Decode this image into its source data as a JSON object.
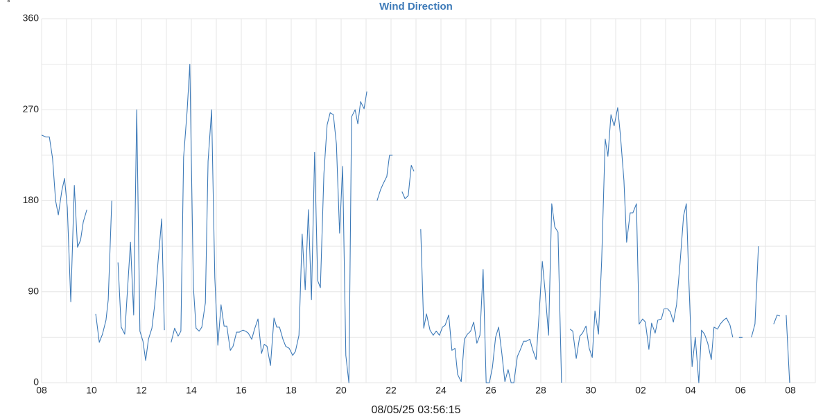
{
  "chart_data": {
    "type": "line",
    "title": "Wind Direction",
    "ylabel": "°",
    "footer": "08/05/25 03:56:15",
    "color": "#3d7ab8",
    "grid": true,
    "xlim": [
      0,
      31
    ],
    "ylim": [
      0,
      360
    ],
    "yticks": [
      0,
      90,
      180,
      270,
      360
    ],
    "y_minor_ticks": [
      45,
      135,
      225,
      315
    ],
    "xticks": [
      {
        "value": 0,
        "label": "08"
      },
      {
        "value": 2,
        "label": "10"
      },
      {
        "value": 4,
        "label": "12"
      },
      {
        "value": 6,
        "label": "14"
      },
      {
        "value": 8,
        "label": "16"
      },
      {
        "value": 10,
        "label": "18"
      },
      {
        "value": 12,
        "label": "20"
      },
      {
        "value": 14,
        "label": "22"
      },
      {
        "value": 16,
        "label": "24"
      },
      {
        "value": 18,
        "label": "26"
      },
      {
        "value": 20,
        "label": "28"
      },
      {
        "value": 22,
        "label": "30"
      },
      {
        "value": 24,
        "label": "02"
      },
      {
        "value": 26,
        "label": "04"
      },
      {
        "value": 28,
        "label": "06"
      },
      {
        "value": 30,
        "label": "08"
      }
    ],
    "x_minor_ticks": [
      1,
      3,
      5,
      7,
      9,
      11,
      13,
      15,
      17,
      19,
      21,
      23,
      25,
      27,
      29,
      31
    ],
    "x": [
      0,
      0.17,
      0.31,
      0.44,
      0.56,
      0.67,
      0.81,
      0.92,
      1.03,
      1.17,
      1.31,
      1.44,
      1.56,
      1.67,
      1.81,
      null,
      2.17,
      2.31,
      2.44,
      2.58,
      2.67,
      2.81,
      null,
      3.06,
      3.19,
      3.33,
      3.44,
      3.56,
      3.69,
      3.81,
      3.94,
      4.06,
      4.17,
      4.28,
      4.42,
      4.53,
      4.67,
      4.81,
      4.92,
      null,
      5.19,
      5.33,
      5.47,
      5.58,
      5.69,
      5.83,
      5.94,
      6.08,
      6.19,
      6.31,
      6.42,
      6.56,
      6.67,
      6.81,
      6.94,
      7.06,
      7.19,
      7.31,
      7.42,
      7.56,
      7.67,
      7.81,
      7.92,
      8.06,
      8.17,
      8.28,
      8.42,
      8.53,
      8.67,
      8.81,
      8.92,
      9.03,
      9.17,
      9.31,
      9.42,
      9.53,
      9.67,
      9.78,
      9.92,
      10.06,
      10.17,
      10.31,
      10.44,
      10.56,
      10.69,
      10.81,
      10.94,
      11.06,
      11.17,
      11.31,
      11.44,
      11.56,
      11.69,
      11.81,
      11.94,
      12.06,
      12.19,
      12.31,
      12.42,
      12.56,
      12.67,
      12.78,
      12.92,
      13.03,
      null,
      13.44,
      13.58,
      13.69,
      13.83,
      13.94,
      14.06,
      null,
      14.44,
      14.56,
      14.69,
      14.81,
      14.92,
      null,
      15.19,
      15.31,
      15.42,
      15.56,
      15.69,
      15.81,
      15.94,
      16.06,
      16.17,
      16.31,
      16.44,
      16.56,
      16.67,
      16.81,
      16.94,
      17.06,
      17.19,
      17.31,
      17.44,
      17.56,
      17.69,
      17.81,
      17.94,
      18.06,
      18.19,
      18.31,
      18.44,
      18.56,
      18.69,
      18.81,
      18.92,
      19.06,
      19.17,
      19.31,
      19.42,
      19.56,
      19.67,
      19.81,
      19.92,
      20.06,
      20.17,
      20.31,
      20.44,
      20.56,
      20.69,
      20.83,
      null,
      21.17,
      21.28,
      21.42,
      21.56,
      21.67,
      21.81,
      21.94,
      22.06,
      22.17,
      22.31,
      22.44,
      22.58,
      22.69,
      22.81,
      22.94,
      23.08,
      23.19,
      23.33,
      23.44,
      23.58,
      23.69,
      23.83,
      23.94,
      24.08,
      24.19,
      24.33,
      24.44,
      24.58,
      24.69,
      24.83,
      24.94,
      25.08,
      25.19,
      25.31,
      25.44,
      25.58,
      25.72,
      25.83,
      25.94,
      26.06,
      26.19,
      26.33,
      26.44,
      26.56,
      26.69,
      26.83,
      26.94,
      27.08,
      27.19,
      27.33,
      27.44,
      27.58,
      27.69,
      null,
      27.94,
      28.08,
      null,
      28.44,
      28.58,
      28.72,
      null,
      29.33,
      29.47,
      29.58,
      null,
      29.83,
      29.97
    ],
    "values": [
      245,
      243,
      243,
      222,
      180,
      166,
      190,
      202,
      173,
      80,
      195,
      134,
      141,
      159,
      171,
      null,
      68,
      40,
      48,
      62,
      82,
      180,
      null,
      119,
      55,
      48,
      91,
      139,
      67,
      270,
      51,
      41,
      22,
      43,
      54,
      77,
      121,
      162,
      52,
      null,
      40,
      54,
      46,
      51,
      223,
      269,
      315,
      95,
      54,
      51,
      55,
      79,
      219,
      270,
      104,
      37,
      77,
      56,
      56,
      32,
      36,
      50,
      50,
      52,
      51,
      49,
      43,
      53,
      63,
      29,
      38,
      36,
      17,
      64,
      55,
      55,
      43,
      36,
      34,
      27,
      31,
      47,
      147,
      92,
      171,
      82,
      228,
      101,
      94,
      207,
      255,
      267,
      265,
      236,
      148,
      214,
      27,
      0,
      263,
      270,
      256,
      278,
      271,
      288,
      null,
      180,
      191,
      197,
      204,
      225,
      225,
      null,
      189,
      182,
      185,
      215,
      209,
      null,
      152,
      54,
      68,
      52,
      47,
      51,
      47,
      55,
      57,
      67,
      32,
      34,
      8,
      1,
      43,
      48,
      51,
      60,
      39,
      47,
      112,
      0,
      0,
      15,
      45,
      55,
      29,
      1,
      13,
      0,
      0,
      26,
      32,
      41,
      41,
      43,
      33,
      23,
      63,
      120,
      91,
      47,
      177,
      154,
      149,
      0,
      null,
      53,
      51,
      24,
      46,
      49,
      56,
      34,
      25,
      71,
      48,
      121,
      241,
      224,
      265,
      254,
      272,
      245,
      200,
      139,
      168,
      168,
      177,
      58,
      63,
      60,
      33,
      59,
      49,
      62,
      63,
      73,
      73,
      70,
      60,
      77,
      119,
      165,
      177,
      96,
      16,
      45,
      0,
      52,
      48,
      39,
      23,
      55,
      53,
      58,
      62,
      64,
      57,
      45,
      null,
      45,
      45,
      null,
      45,
      58,
      135,
      null,
      58,
      67,
      66,
      null,
      67,
      0
    ]
  }
}
